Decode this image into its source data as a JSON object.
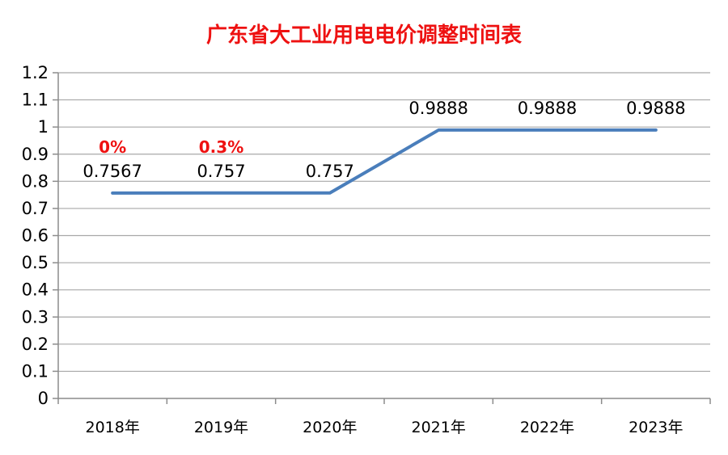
{
  "chart_data": {
    "type": "line",
    "title": "广东省大工业用电电价调整时间表",
    "categories": [
      "2018年",
      "2019年",
      "2020年",
      "2021年",
      "2022年",
      "2023年"
    ],
    "series": [
      {
        "values": [
          0.7567,
          0.757,
          0.757,
          0.9888,
          0.9888,
          0.9888
        ],
        "color": "#4a7ebb"
      }
    ],
    "data_labels": [
      "0.7567",
      "0.757",
      "0.757",
      "0.9888",
      "0.9888",
      "0.9888"
    ],
    "annotations": [
      {
        "text": "0%",
        "category": "2018年",
        "color": "#ee1111"
      },
      {
        "text": "0.3%",
        "category": "2019年",
        "color": "#ee1111"
      }
    ],
    "ylim": [
      0,
      1.2
    ],
    "yticks": [
      "0",
      "0.1",
      "0.2",
      "0.3",
      "0.4",
      "0.5",
      "0.6",
      "0.7",
      "0.8",
      "0.9",
      "1",
      "1.1",
      "1.2"
    ],
    "xlabel": "",
    "ylabel": "",
    "grid": true,
    "legend": "none"
  }
}
